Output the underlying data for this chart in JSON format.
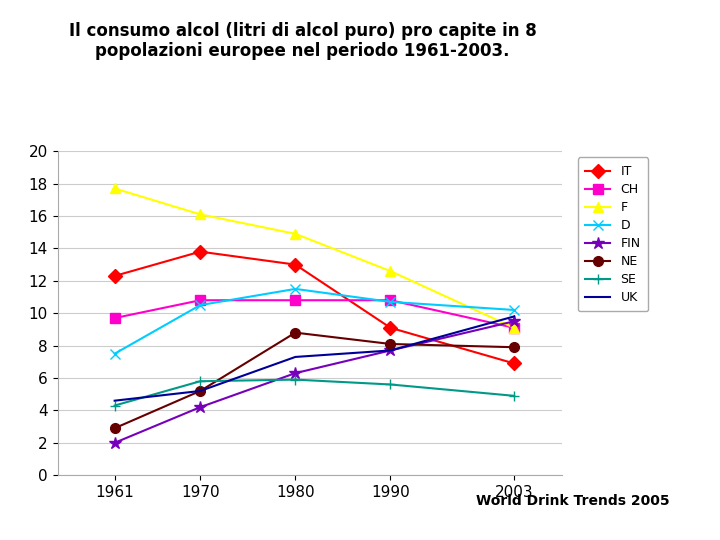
{
  "title": "Il consumo alcol (litri di alcol puro) pro capite in 8\npopolazioni europee nel periodo 1961-2003.",
  "years": [
    1961,
    1970,
    1980,
    1990,
    2003
  ],
  "series": {
    "IT": [
      12.3,
      13.8,
      13.0,
      9.1,
      6.9
    ],
    "CH": [
      9.7,
      10.8,
      10.8,
      10.8,
      9.1
    ],
    "F": [
      17.7,
      16.1,
      14.9,
      12.6,
      9.1
    ],
    "D": [
      7.5,
      10.5,
      11.5,
      10.7,
      10.2
    ],
    "FIN": [
      2.0,
      4.2,
      6.3,
      7.7,
      9.5
    ],
    "NE": [
      2.9,
      5.2,
      8.8,
      8.1,
      7.9
    ],
    "SE": [
      4.3,
      5.8,
      5.9,
      5.6,
      4.9
    ],
    "UK": [
      4.6,
      5.2,
      7.3,
      7.7,
      9.8
    ]
  },
  "colors": {
    "IT": "#FF0000",
    "CH": "#FF00CC",
    "F": "#FFFF00",
    "D": "#00CCFF",
    "FIN": "#7700BB",
    "NE": "#660000",
    "SE": "#009988",
    "UK": "#000099"
  },
  "markers": {
    "IT": "D",
    "CH": "s",
    "F": "^",
    "D": "x",
    "FIN": "*",
    "NE": "o",
    "SE": "+",
    "UK": "None"
  },
  "ylim": [
    0,
    20
  ],
  "yticks": [
    0,
    2,
    4,
    6,
    8,
    10,
    12,
    14,
    16,
    18,
    20
  ],
  "watermark": "World Drink Trends 2005",
  "bg_color": "#ffffff",
  "plot_bg": "#ffffff"
}
